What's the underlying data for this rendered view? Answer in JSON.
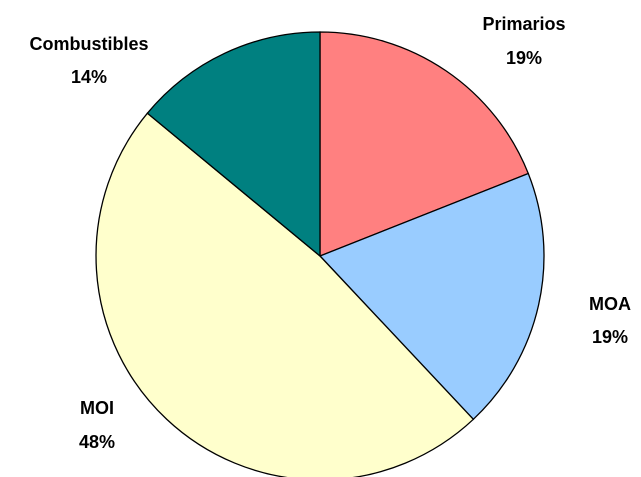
{
  "chart_data": {
    "type": "pie",
    "title": "",
    "start_angle_deg": 0,
    "direction": "clockwise",
    "slices": [
      {
        "label": "Primarios",
        "value": 19,
        "value_label": "19%",
        "color": "#FF8080"
      },
      {
        "label": "MOA",
        "value": 19,
        "value_label": "19%",
        "color": "#99CCFF"
      },
      {
        "label": "MOI",
        "value": 48,
        "value_label": "48%",
        "color": "#FFFFCC"
      },
      {
        "label": "Combustibles",
        "value": 14,
        "value_label": "14%",
        "color": "#008080"
      }
    ],
    "legend": "none",
    "data_labels": "category name and percentage, outside slices"
  }
}
